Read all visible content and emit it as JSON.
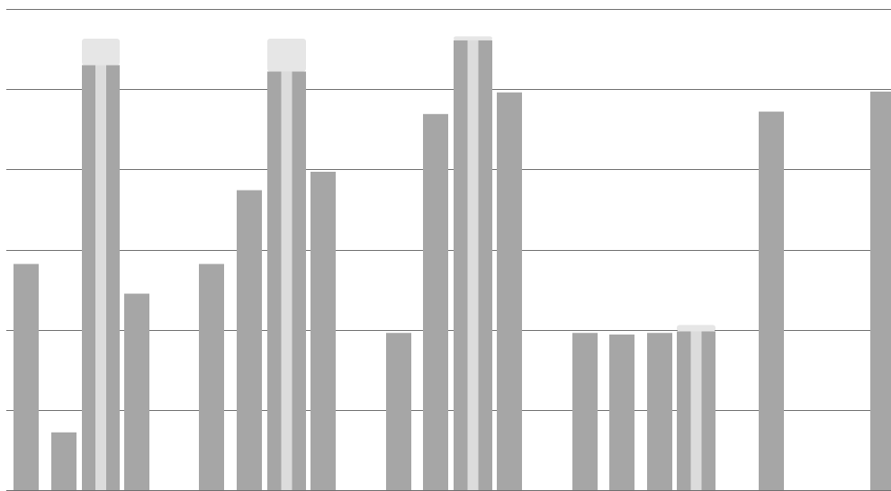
{
  "colors": {
    "bar": "#a6a6a6",
    "bar_highlight": "#eeeeee",
    "cap": "#e6e6e6",
    "grid": "#707070",
    "background": "#ffffff"
  },
  "chart_data": {
    "type": "bar",
    "grid": true,
    "legend": "none",
    "ylim": [
      0,
      6
    ],
    "y_gridlines": [
      0,
      1,
      2,
      3,
      4,
      5,
      6
    ],
    "categories": [
      "",
      "",
      "",
      "",
      "",
      ""
    ],
    "groups": [
      {
        "bars": [
          {
            "value": 2.82
          },
          {
            "value": 0.72
          },
          {
            "value": 5.3,
            "cap": 0.33,
            "highlight": true
          },
          {
            "value": 2.45
          }
        ]
      },
      {
        "bars": [
          {
            "value": 2.82
          },
          {
            "value": 3.74
          },
          {
            "value": 5.22,
            "cap": 0.41,
            "highlight": true
          },
          {
            "value": 3.97
          }
        ]
      },
      {
        "bars": [
          {
            "value": 1.96
          },
          {
            "value": 4.69
          },
          {
            "value": 5.61,
            "cap": 0.05,
            "highlight": true
          },
          {
            "value": 4.96
          }
        ]
      },
      {
        "bars": [
          {
            "value": 1.96
          },
          {
            "value": 1.94
          },
          {
            "value": 1.96
          },
          {
            "value": 1.98,
            "cap": 0.08,
            "highlight": true
          }
        ]
      },
      {
        "bars": [
          {
            "value": 4.72
          }
        ]
      },
      {
        "bars": [
          {
            "value": 4.97
          }
        ]
      }
    ]
  }
}
